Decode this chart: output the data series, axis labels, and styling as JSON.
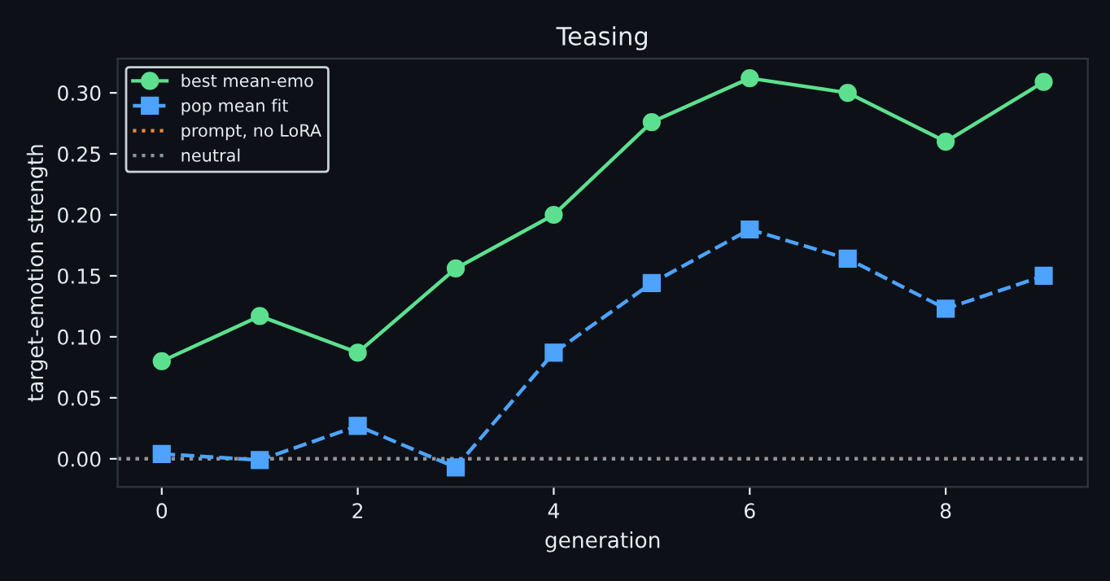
{
  "chart_data": {
    "type": "line",
    "title": "Teasing",
    "xlabel": "generation",
    "ylabel": "target-emotion strength",
    "x": [
      0,
      1,
      2,
      3,
      4,
      5,
      6,
      7,
      8,
      9
    ],
    "series": [
      {
        "name": "best mean-emo",
        "color": "#5ce08f",
        "marker": "circle",
        "line_style": "solid",
        "values": [
          0.08,
          0.117,
          0.087,
          0.156,
          0.2,
          0.276,
          0.312,
          0.3,
          0.26,
          0.309
        ]
      },
      {
        "name": "pop mean fit",
        "color": "#4da3ff",
        "marker": "square",
        "line_style": "dashed",
        "values": [
          0.004,
          -0.001,
          0.027,
          -0.007,
          0.087,
          0.144,
          0.188,
          0.164,
          0.123,
          0.15
        ]
      }
    ],
    "ref_lines": [
      {
        "axis": "y",
        "value": 0,
        "label": "prompt, no LoRA",
        "color": "#f0883e",
        "line_style": "dotted"
      },
      {
        "axis": "y",
        "value": 0,
        "label": "neutral",
        "color": "#8b949e",
        "line_style": "dotted"
      }
    ],
    "xlim": [
      -0.45,
      9.45
    ],
    "ylim": [
      -0.023,
      0.328
    ],
    "xticks": [
      0,
      2,
      4,
      6,
      8
    ],
    "yticks": [
      {
        "value": 0,
        "label": "0.00"
      },
      {
        "value": 0.05,
        "label": "0.05"
      },
      {
        "value": 0.1,
        "label": "0.10"
      },
      {
        "value": 0.15,
        "label": "0.15"
      },
      {
        "value": 0.2,
        "label": "0.20"
      },
      {
        "value": 0.25,
        "label": "0.25"
      },
      {
        "value": 0.3,
        "label": "0.30"
      }
    ],
    "grid": false,
    "legend": "top left"
  }
}
